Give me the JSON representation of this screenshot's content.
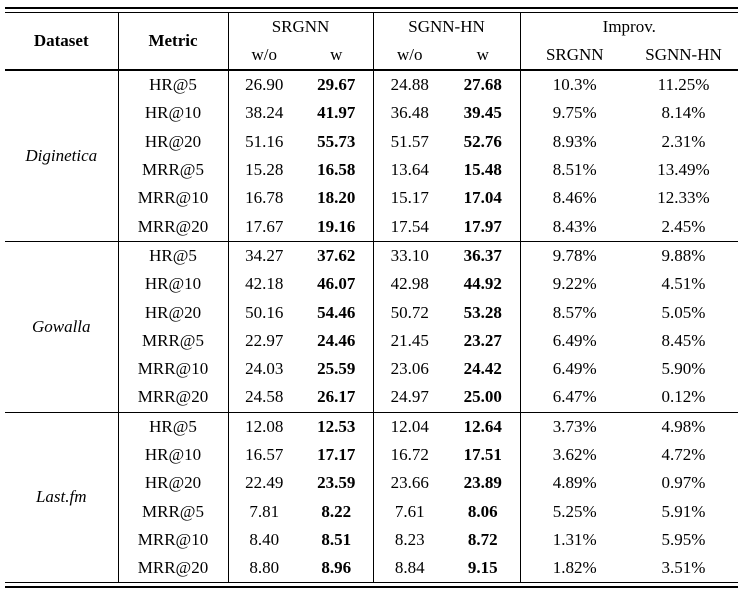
{
  "colors": {
    "background": "#ffffff",
    "text": "#000000",
    "rule": "#000000"
  },
  "table": {
    "header": {
      "dataset": "Dataset",
      "metric": "Metric",
      "groups": [
        {
          "label": "SRGNN",
          "sub": [
            "w/o",
            "w"
          ]
        },
        {
          "label": "SGNN-HN",
          "sub": [
            "w/o",
            "w"
          ]
        },
        {
          "label": "Improv.",
          "sub": [
            "SRGNN",
            "SGNN-HN"
          ]
        }
      ]
    },
    "column_semantics": [
      "metric",
      "srgnn_wo",
      "srgnn_w",
      "sgnnhn_wo",
      "sgnnhn_w",
      "improv_srgnn",
      "improv_sgnnhn"
    ],
    "bold_column_indices": [
      2,
      4
    ],
    "blocks": [
      {
        "dataset": "Diginetica",
        "rows": [
          [
            "HR@5",
            "26.90",
            "29.67",
            "24.88",
            "27.68",
            "10.3%",
            "11.25%"
          ],
          [
            "HR@10",
            "38.24",
            "41.97",
            "36.48",
            "39.45",
            "9.75%",
            "8.14%"
          ],
          [
            "HR@20",
            "51.16",
            "55.73",
            "51.57",
            "52.76",
            "8.93%",
            "2.31%"
          ],
          [
            "MRR@5",
            "15.28",
            "16.58",
            "13.64",
            "15.48",
            "8.51%",
            "13.49%"
          ],
          [
            "MRR@10",
            "16.78",
            "18.20",
            "15.17",
            "17.04",
            "8.46%",
            "12.33%"
          ],
          [
            "MRR@20",
            "17.67",
            "19.16",
            "17.54",
            "17.97",
            "8.43%",
            "2.45%"
          ]
        ]
      },
      {
        "dataset": "Gowalla",
        "rows": [
          [
            "HR@5",
            "34.27",
            "37.62",
            "33.10",
            "36.37",
            "9.78%",
            "9.88%"
          ],
          [
            "HR@10",
            "42.18",
            "46.07",
            "42.98",
            "44.92",
            "9.22%",
            "4.51%"
          ],
          [
            "HR@20",
            "50.16",
            "54.46",
            "50.72",
            "53.28",
            "8.57%",
            "5.05%"
          ],
          [
            "MRR@5",
            "22.97",
            "24.46",
            "21.45",
            "23.27",
            "6.49%",
            "8.45%"
          ],
          [
            "MRR@10",
            "24.03",
            "25.59",
            "23.06",
            "24.42",
            "6.49%",
            "5.90%"
          ],
          [
            "MRR@20",
            "24.58",
            "26.17",
            "24.97",
            "25.00",
            "6.47%",
            "0.12%"
          ]
        ]
      },
      {
        "dataset": "Last.fm",
        "rows": [
          [
            "HR@5",
            "12.08",
            "12.53",
            "12.04",
            "12.64",
            "3.73%",
            "4.98%"
          ],
          [
            "HR@10",
            "16.57",
            "17.17",
            "16.72",
            "17.51",
            "3.62%",
            "4.72%"
          ],
          [
            "HR@20",
            "22.49",
            "23.59",
            "23.66",
            "23.89",
            "4.89%",
            "0.97%"
          ],
          [
            "MRR@5",
            "7.81",
            "8.22",
            "7.61",
            "8.06",
            "5.25%",
            "5.91%"
          ],
          [
            "MRR@10",
            "8.40",
            "8.51",
            "8.23",
            "8.72",
            "1.31%",
            "5.95%"
          ],
          [
            "MRR@20",
            "8.80",
            "8.96",
            "8.84",
            "9.15",
            "1.82%",
            "3.51%"
          ]
        ]
      }
    ]
  }
}
